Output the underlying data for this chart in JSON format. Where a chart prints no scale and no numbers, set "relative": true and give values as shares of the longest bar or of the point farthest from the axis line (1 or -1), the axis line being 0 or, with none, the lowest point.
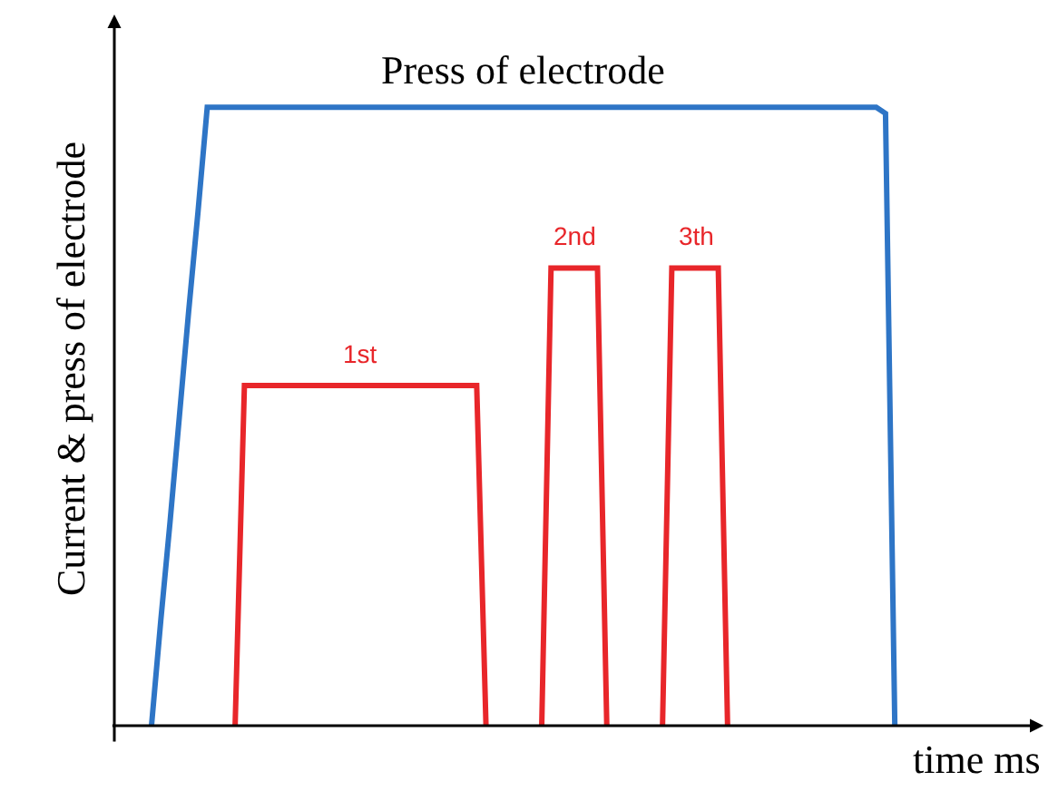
{
  "chart_data": {
    "type": "line",
    "relative": true,
    "xlabel": "time ms",
    "ylabel": "Current & press of electrode",
    "legend": false,
    "marker": "none",
    "line_style": "solid",
    "categories": [
      null,
      null,
      null,
      null,
      null,
      null,
      null,
      null,
      null,
      null,
      null,
      null,
      null,
      null,
      null,
      null,
      null,
      null,
      null,
      null,
      null,
      null,
      null,
      null,
      null,
      null,
      null,
      null,
      null,
      null,
      null,
      null,
      null,
      null,
      null,
      null,
      null,
      null,
      null,
      null,
      null,
      null,
      null,
      null,
      null,
      null,
      null,
      null,
      null,
      null,
      null,
      null,
      null,
      null,
      null,
      null,
      null,
      null,
      null,
      null,
      null,
      null,
      null,
      null,
      null,
      null,
      null,
      null,
      null,
      null,
      null,
      null,
      null,
      null,
      null,
      null,
      null,
      null,
      null,
      null,
      null,
      null,
      null,
      null,
      null,
      null,
      null,
      null,
      null,
      null,
      null,
      null,
      null,
      null,
      null,
      null,
      null,
      null,
      null,
      null,
      null
    ],
    "series": [
      {
        "name": "Press of electrode",
        "color": "#2e75c6",
        "values": [
          null,
          null,
          null,
          null,
          0,
          0.17,
          0.33,
          0.5,
          0.67,
          0.83,
          1,
          1,
          1,
          1,
          1,
          1,
          1,
          1,
          1,
          1,
          1,
          1,
          1,
          1,
          1,
          1,
          1,
          1,
          1,
          1,
          1,
          1,
          1,
          1,
          1,
          1,
          1,
          1,
          1,
          1,
          1,
          1,
          1,
          1,
          1,
          1,
          1,
          1,
          1,
          1,
          1,
          1,
          1,
          1,
          1,
          1,
          1,
          1,
          1,
          1,
          1,
          1,
          1,
          1,
          1,
          1,
          1,
          1,
          1,
          1,
          1,
          1,
          1,
          1,
          1,
          1,
          1,
          1,
          1,
          1,
          1,
          1,
          1,
          0.99,
          0,
          null,
          null,
          null,
          null,
          null,
          null,
          null,
          null,
          null,
          null,
          null,
          null,
          null,
          null,
          null,
          null
        ]
      },
      {
        "color": "#e8262a",
        "values": [
          null,
          null,
          null,
          null,
          null,
          null,
          null,
          null,
          null,
          null,
          null,
          null,
          null,
          0,
          0.55,
          0.55,
          0.55,
          0.55,
          0.55,
          0.55,
          0.55,
          0.55,
          0.55,
          0.55,
          0.55,
          0.55,
          0.55,
          0.55,
          0.55,
          0.55,
          0.55,
          0.55,
          0.55,
          0.55,
          0.55,
          0.55,
          0.55,
          0.55,
          0.55,
          0.55,
          0,
          null,
          null,
          null,
          null,
          null,
          null,
          null,
          null,
          null,
          null,
          null,
          null,
          null,
          null,
          null,
          null,
          null,
          null,
          null,
          null,
          null,
          null,
          null,
          null,
          null,
          null,
          null,
          null,
          null,
          null,
          null,
          null,
          null,
          null,
          null,
          null,
          null,
          null,
          null,
          null,
          null,
          null,
          null,
          null,
          null,
          null,
          null,
          null,
          null,
          null,
          null,
          null,
          null,
          null,
          null,
          null,
          null,
          null,
          null,
          null
        ]
      },
      {
        "color": "#e8262a",
        "values": [
          null,
          null,
          null,
          null,
          null,
          null,
          null,
          null,
          null,
          null,
          null,
          null,
          null,
          null,
          null,
          null,
          null,
          null,
          null,
          null,
          null,
          null,
          null,
          null,
          null,
          null,
          null,
          null,
          null,
          null,
          null,
          null,
          null,
          null,
          null,
          null,
          null,
          null,
          null,
          null,
          null,
          null,
          null,
          null,
          null,
          null,
          0,
          0.74,
          0.74,
          0.74,
          0.74,
          0.74,
          0.74,
          0,
          null,
          null,
          null,
          null,
          null,
          null,
          null,
          null,
          null,
          null,
          null,
          null,
          null,
          null,
          null,
          null,
          null,
          null,
          null,
          null,
          null,
          null,
          null,
          null,
          null,
          null,
          null,
          null,
          null,
          null,
          null,
          null,
          null,
          null,
          null,
          null,
          null,
          null,
          null,
          null,
          null,
          null,
          null,
          null,
          null,
          null,
          null
        ]
      },
      {
        "color": "#e8262a",
        "values": [
          null,
          null,
          null,
          null,
          null,
          null,
          null,
          null,
          null,
          null,
          null,
          null,
          null,
          null,
          null,
          null,
          null,
          null,
          null,
          null,
          null,
          null,
          null,
          null,
          null,
          null,
          null,
          null,
          null,
          null,
          null,
          null,
          null,
          null,
          null,
          null,
          null,
          null,
          null,
          null,
          null,
          null,
          null,
          null,
          null,
          null,
          null,
          null,
          null,
          null,
          null,
          null,
          null,
          null,
          null,
          null,
          null,
          null,
          null,
          0,
          0.74,
          0.74,
          0.74,
          0.74,
          0.74,
          0.74,
          0,
          null,
          null,
          null,
          null,
          null,
          null,
          null,
          null,
          null,
          null,
          null,
          null,
          null,
          null,
          null,
          null,
          null,
          null,
          null,
          null,
          null,
          null,
          null,
          null,
          null,
          null,
          null,
          null,
          null,
          null,
          null,
          null,
          null,
          null
        ]
      }
    ],
    "annotations": [
      "1st",
      "2nd",
      "3th"
    ]
  }
}
